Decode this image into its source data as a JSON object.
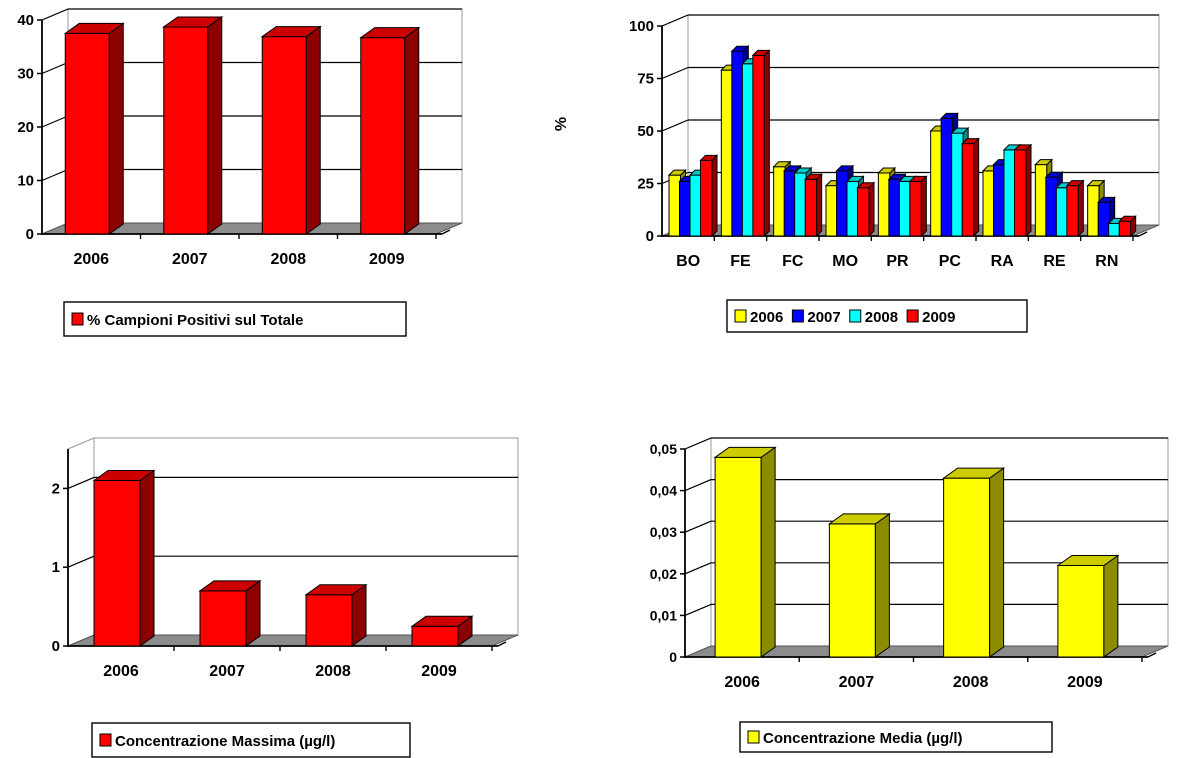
{
  "chart_data": [
    {
      "id": "c1",
      "type": "bar",
      "categories": [
        "2006",
        "2007",
        "2008",
        "2009"
      ],
      "series": [
        {
          "name": "% Campioni Positivi sul Totale",
          "values": [
            37.5,
            38.7,
            36.9,
            36.7
          ],
          "color": "#ff0000"
        }
      ],
      "yticks": [
        "0",
        "10",
        "20",
        "30",
        "40"
      ],
      "ylim": [
        0,
        40
      ],
      "ylabel": "",
      "legend_position": "bottom",
      "grid": true
    },
    {
      "id": "c2",
      "type": "bar",
      "categories": [
        "BO",
        "FE",
        "FC",
        "MO",
        "PR",
        "PC",
        "RA",
        "RE",
        "RN"
      ],
      "series": [
        {
          "name": "2006",
          "color": "#ffff00",
          "values": [
            29,
            79,
            33,
            24,
            30,
            50,
            31,
            34,
            24
          ]
        },
        {
          "name": "2007",
          "color": "#0000ff",
          "values": [
            26,
            88,
            31,
            31,
            27,
            56,
            34,
            28,
            16
          ]
        },
        {
          "name": "2008",
          "color": "#00ffff",
          "values": [
            29,
            82,
            30,
            26,
            26,
            49,
            41,
            23,
            6
          ]
        },
        {
          "name": "2009",
          "color": "#ff0000",
          "values": [
            36,
            86,
            27,
            23,
            26,
            44,
            41,
            24,
            7
          ]
        }
      ],
      "yticks": [
        "0",
        "25",
        "50",
        "75",
        "100"
      ],
      "ylim": [
        0,
        100
      ],
      "ylabel": "%",
      "legend_position": "bottom",
      "grid": true
    },
    {
      "id": "c3",
      "type": "bar",
      "categories": [
        "2006",
        "2007",
        "2008",
        "2009"
      ],
      "series": [
        {
          "name": "Concentrazione Massima (µg/l)",
          "values": [
            2.1,
            0.7,
            0.65,
            0.25
          ],
          "color": "#ff0000"
        }
      ],
      "yticks": [
        "0",
        "1",
        "2"
      ],
      "ylim": [
        0,
        2.5
      ],
      "ylabel": "",
      "legend_position": "bottom",
      "grid": true
    },
    {
      "id": "c4",
      "type": "bar",
      "categories": [
        "2006",
        "2007",
        "2008",
        "2009"
      ],
      "series": [
        {
          "name": "Concentrazione Media (µg/l)",
          "values": [
            0.048,
            0.032,
            0.043,
            0.022
          ],
          "color": "#ffff00"
        }
      ],
      "yticks": [
        "0",
        "0,01",
        "0,02",
        "0,03",
        "0,04",
        "0,05"
      ],
      "ylim": [
        0,
        0.05
      ],
      "ylabel": "",
      "legend_position": "bottom",
      "grid": true
    }
  ]
}
